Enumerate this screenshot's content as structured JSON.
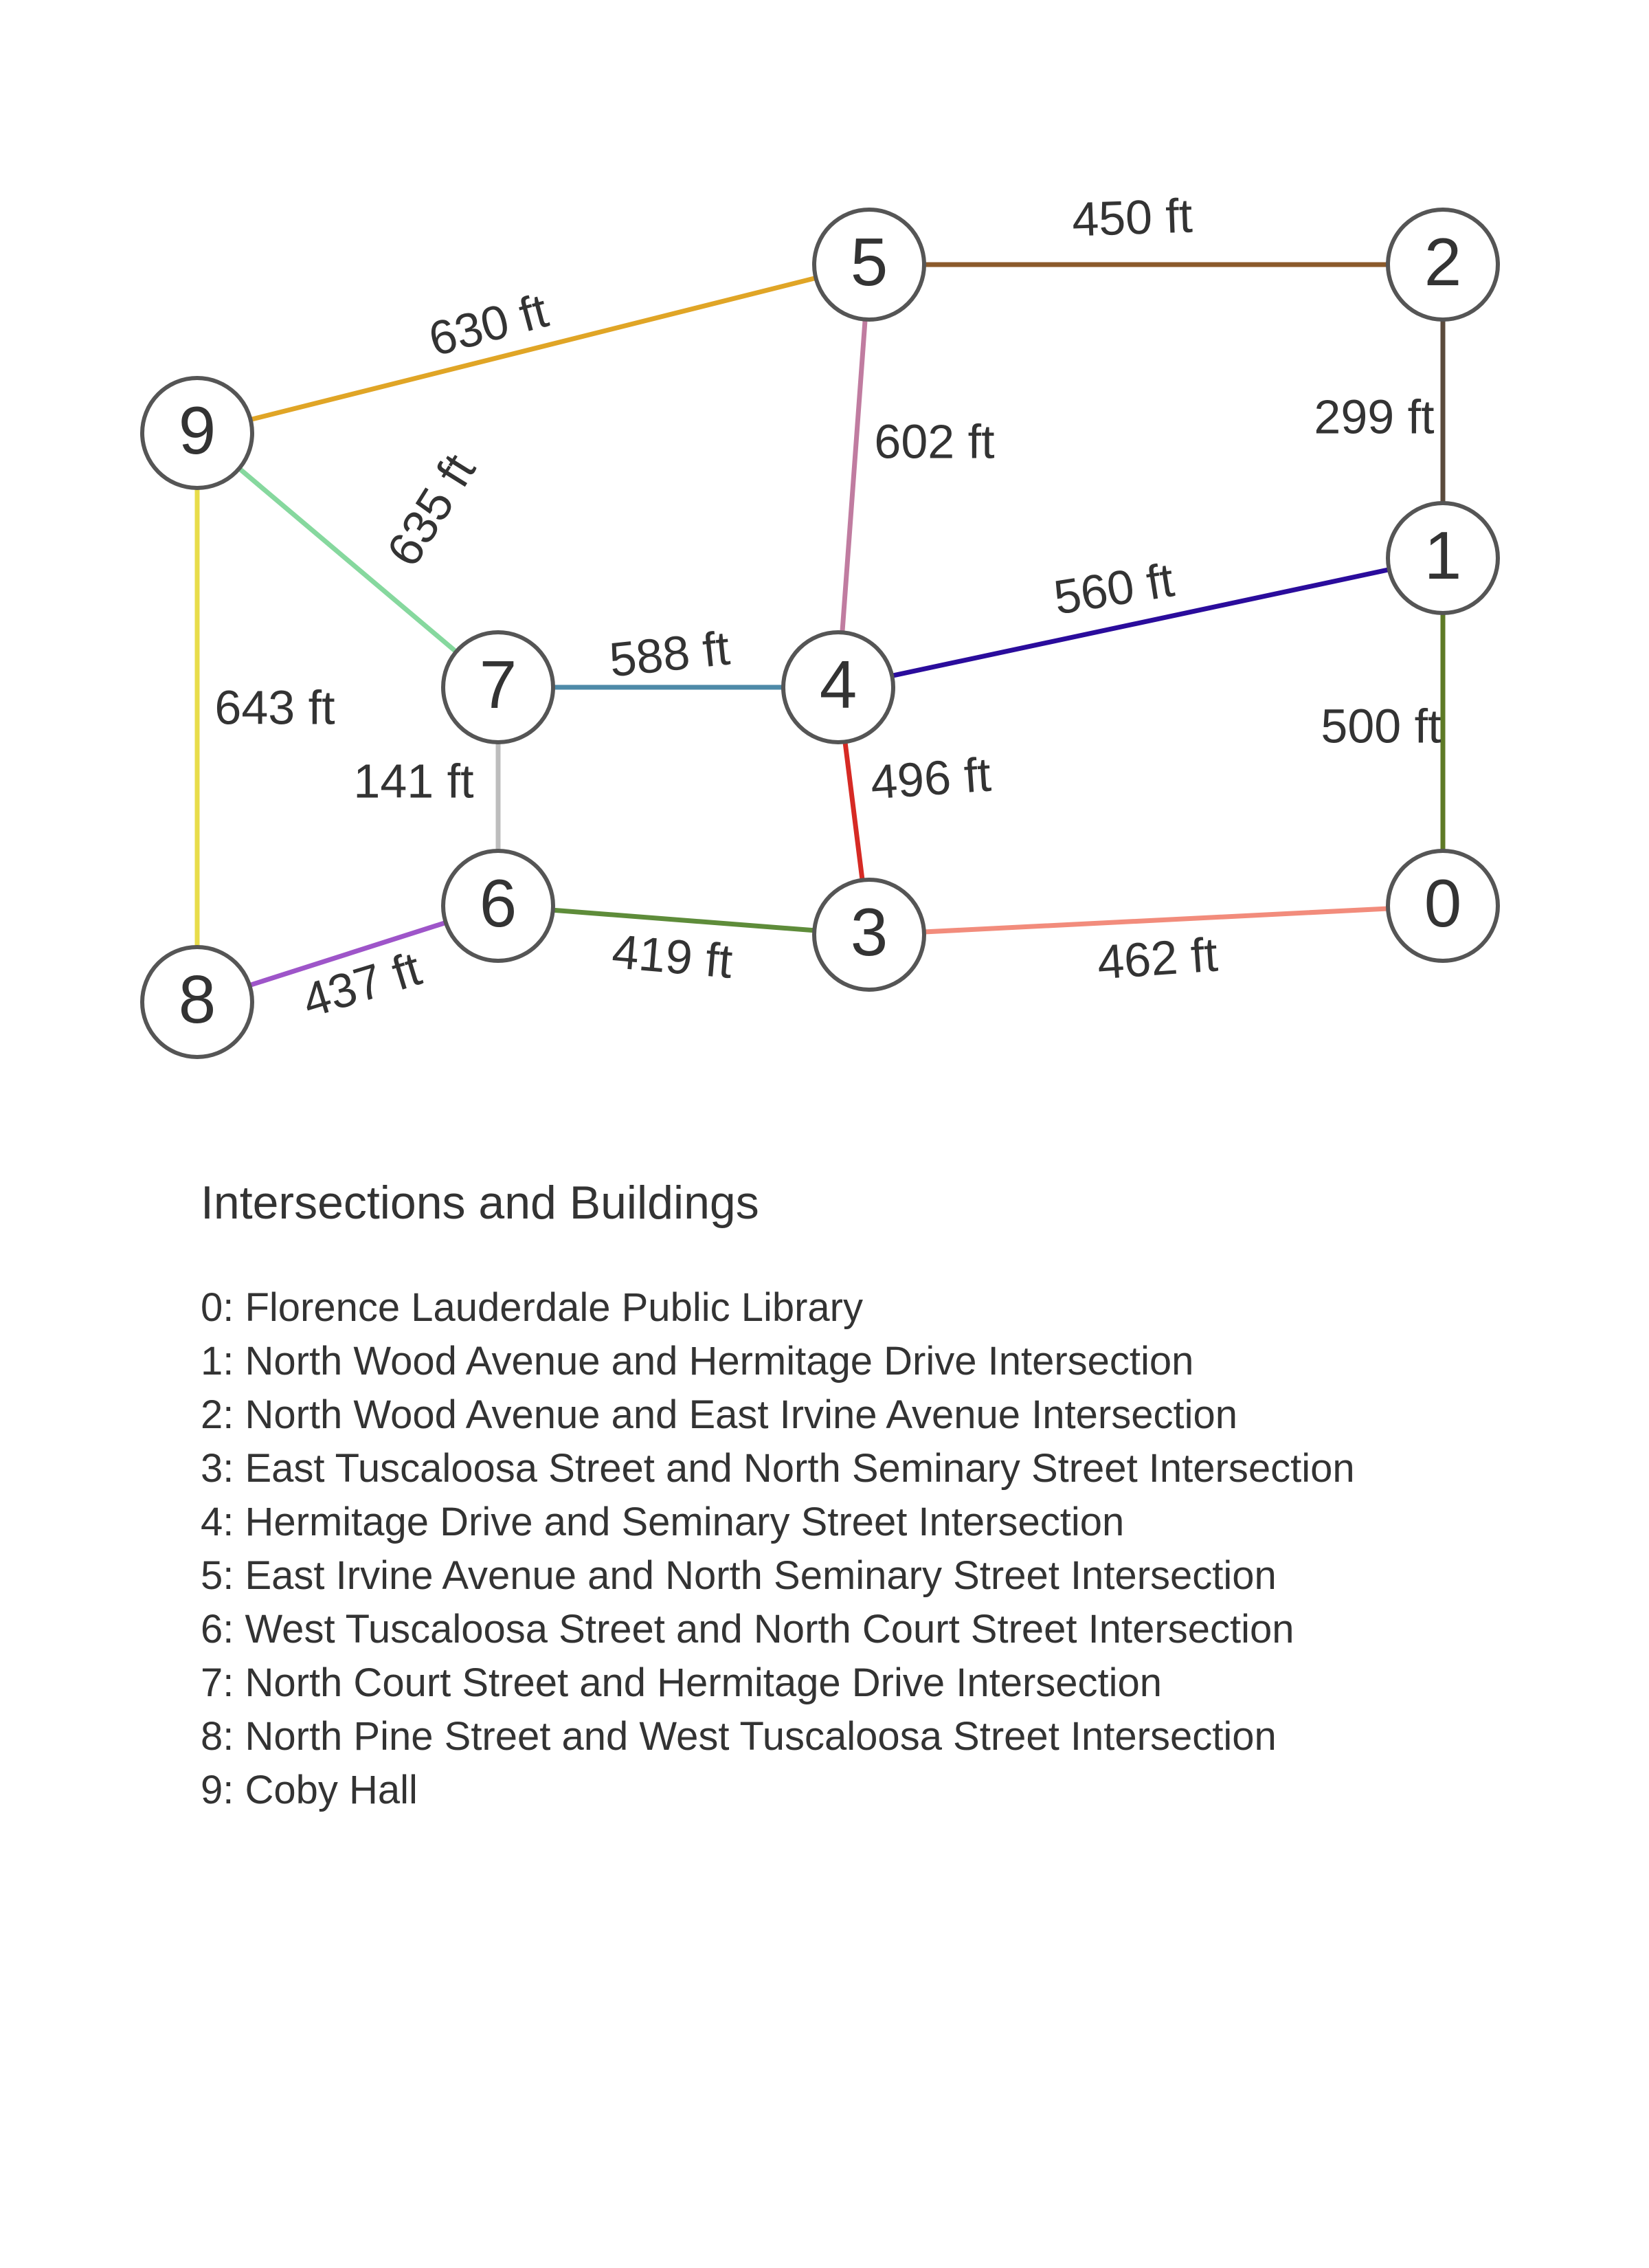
{
  "nodes": [
    {
      "id": "0",
      "label": "0"
    },
    {
      "id": "1",
      "label": "1"
    },
    {
      "id": "2",
      "label": "2"
    },
    {
      "id": "3",
      "label": "3"
    },
    {
      "id": "4",
      "label": "4"
    },
    {
      "id": "5",
      "label": "5"
    },
    {
      "id": "6",
      "label": "6"
    },
    {
      "id": "7",
      "label": "7"
    },
    {
      "id": "8",
      "label": "8"
    },
    {
      "id": "9",
      "label": "9"
    }
  ],
  "edges": [
    {
      "from": "5",
      "to": "2",
      "label": "450 ft",
      "color": "#8B5A2B"
    },
    {
      "from": "9",
      "to": "5",
      "label": "630 ft",
      "color": "#E0A526"
    },
    {
      "from": "2",
      "to": "1",
      "label": "299 ft",
      "color": "#5B4A3C"
    },
    {
      "from": "5",
      "to": "4",
      "label": "602 ft",
      "color": "#C07CA0"
    },
    {
      "from": "9",
      "to": "7",
      "label": "635 ft",
      "color": "#86D89E"
    },
    {
      "from": "4",
      "to": "1",
      "label": "560 ft",
      "color": "#2A0C9C"
    },
    {
      "from": "7",
      "to": "4",
      "label": "588 ft",
      "color": "#4E8AA8"
    },
    {
      "from": "9",
      "to": "8",
      "label": "643 ft",
      "color": "#E8DC4A"
    },
    {
      "from": "1",
      "to": "0",
      "label": "500 ft",
      "color": "#5E7A26"
    },
    {
      "from": "7",
      "to": "6",
      "label": "141 ft",
      "color": "#BDBDBD"
    },
    {
      "from": "4",
      "to": "3",
      "label": "496 ft",
      "color": "#D62A24"
    },
    {
      "from": "6",
      "to": "3",
      "label": "419 ft",
      "color": "#5E8C3A"
    },
    {
      "from": "3",
      "to": "0",
      "label": "462 ft",
      "color": "#F28C7C"
    },
    {
      "from": "8",
      "to": "6",
      "label": "437 ft",
      "color": "#9E55C9"
    }
  ],
  "legend": {
    "title": "Intersections and Buildings",
    "items": [
      "0: Florence Lauderdale Public Library",
      "1: North Wood Avenue and Hermitage Drive Intersection",
      "2: North Wood Avenue and East Irvine Avenue Intersection",
      "3: East Tuscaloosa Street and North Seminary Street Intersection",
      "4: Hermitage Drive and Seminary Street Intersection",
      "5: East Irvine Avenue and North Seminary Street Intersection",
      "6: West Tuscaloosa Street and North Court Street Intersection",
      "7: North Court Street and Hermitage Drive Intersection",
      "8: North Pine Street and West Tuscaloosa Street Intersection",
      "9: Coby Hall"
    ]
  }
}
